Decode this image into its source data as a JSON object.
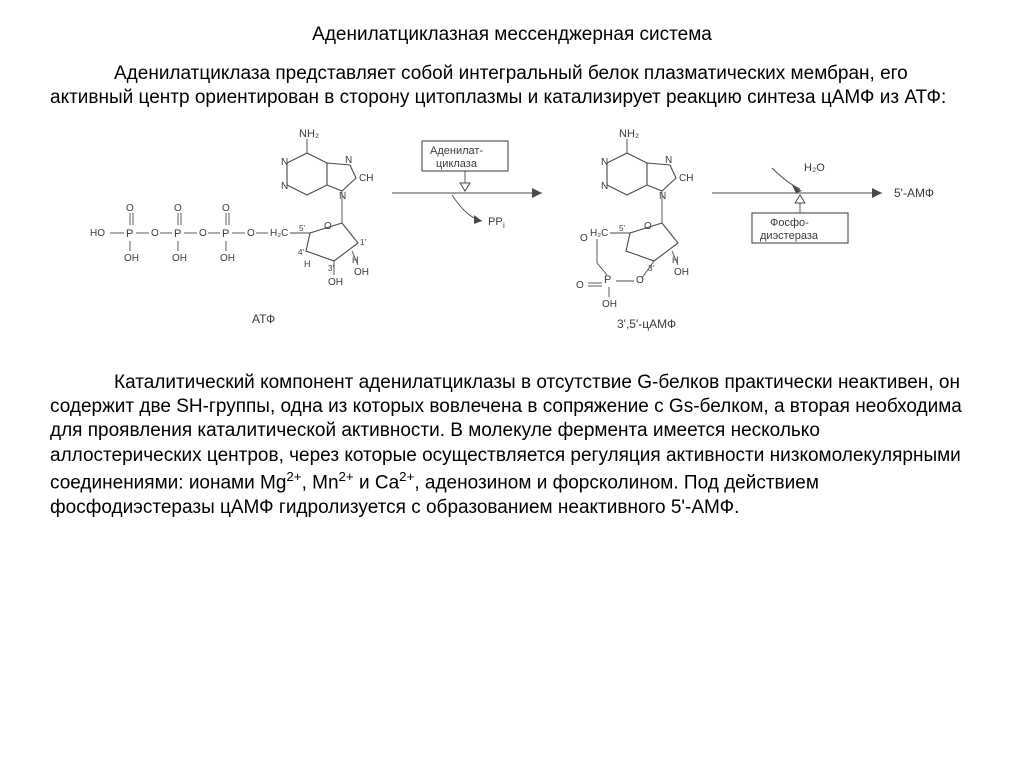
{
  "title": "Аденилатциклазная мессенджерная система",
  "para1": "Аденилатциклаза представляет собой интегральный белок плазматических мембран, его активный центр ориентирован в сторону цитоплазмы и катализирует реакцию синтеза цАМФ из АТФ:",
  "para2_html": "Каталитический компонент аденилатциклазы в отсутствие G-белков практически неактивен, он содержит две SH-группы, одна из которых вовлечена в сопряжение с Gs-белком, а вторая необходима для проявления каталитической активности. В молекуле фермента имеется несколько аллостерических центров, через которые осуществляется регуляция активности низкомолекулярными соединениями: ионами Mg<sup>2+</sup>, Mn<sup>2+</sup> и Ca<sup>2+</sup>, аденозином и форсколином. Под действием фосфодиэстеразы цАМФ гидролизуется с образованием неактивного 5'-АМФ.",
  "diagram": {
    "enzyme_box1_line1": "Аденилат-",
    "enzyme_box1_line2": "циклаза",
    "enzyme_box2_line1": "Фосфо-",
    "enzyme_box2_line2": "диэстераза",
    "byproduct_pp": "PP",
    "byproduct_pp_sub": "i",
    "h2o": "H₂O",
    "product": "5'-АМФ",
    "label_atp": "АТФ",
    "label_camp": "3',5'-цАМФ",
    "atom_labels": {
      "NH2": "NH₂",
      "N": "N",
      "CH": "CH",
      "HO": "HO",
      "OH": "OH",
      "O": "O",
      "P": "P",
      "H2C": "H₂C",
      "H": "H",
      "pos5": "5'",
      "pos4": "4'",
      "pos3": "3'",
      "pos1": "1'"
    },
    "colors": {
      "stroke": "#4a4a4a",
      "text": "#3a3a3a",
      "bg": "#ffffff"
    }
  }
}
